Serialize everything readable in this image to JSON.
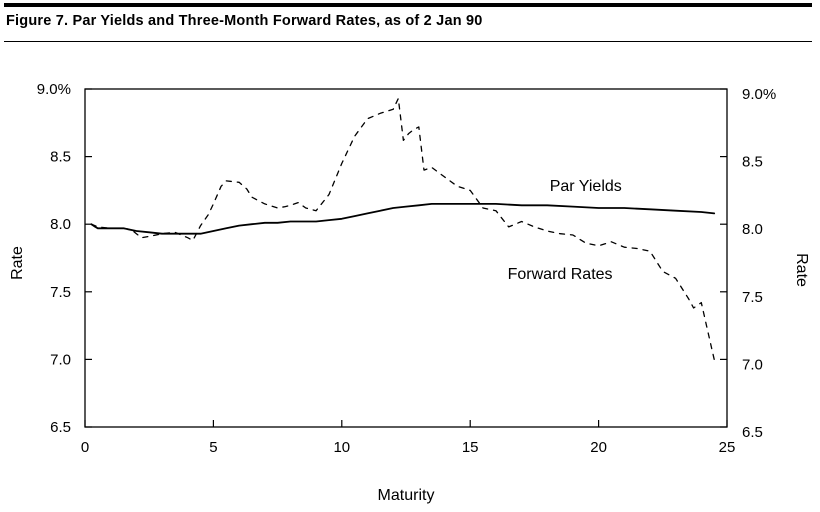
{
  "figure": {
    "title": "Figure 7. Par Yields and Three-Month Forward Rates, as of 2 Jan 90"
  },
  "chart_data": {
    "type": "line",
    "title": "Figure 7. Par Yields and Three-Month Forward Rates, as of 2 Jan 90",
    "xlabel": "Maturity",
    "ylabel_left": "Rate",
    "ylabel_right": "Rate",
    "xlim": [
      0,
      25
    ],
    "ylim": [
      6.5,
      9.0
    ],
    "x_ticks": [
      0,
      5,
      10,
      15,
      20,
      25
    ],
    "x_tick_labels": [
      "0",
      "5",
      "10",
      "15",
      "20",
      "25"
    ],
    "y_ticks": [
      6.5,
      7.0,
      7.5,
      8.0,
      8.5,
      9.0
    ],
    "y_tick_labels": [
      "6.5",
      "7.0",
      "7.5",
      "8.0",
      "8.5",
      "9.0%"
    ],
    "grid": false,
    "series": [
      {
        "name": "Par Yields",
        "style": "solid",
        "color": "#000000",
        "x": [
          0.25,
          0.4,
          0.5,
          1.0,
          1.5,
          2.0,
          2.5,
          3.0,
          3.5,
          4.0,
          4.5,
          5.0,
          5.5,
          6.0,
          6.5,
          7.0,
          7.5,
          8.0,
          8.5,
          9.0,
          9.5,
          10.0,
          10.5,
          11.0,
          11.5,
          12.0,
          12.5,
          13.0,
          13.5,
          14.0,
          14.5,
          15.0,
          15.5,
          16.0,
          17.0,
          18.0,
          19.0,
          20.0,
          21.0,
          22.0,
          23.0,
          24.0,
          24.5
        ],
        "y": [
          8.0,
          7.98,
          7.97,
          7.97,
          7.97,
          7.95,
          7.94,
          7.93,
          7.93,
          7.93,
          7.93,
          7.95,
          7.97,
          7.99,
          8.0,
          8.01,
          8.01,
          8.02,
          8.02,
          8.02,
          8.03,
          8.04,
          8.06,
          8.08,
          8.1,
          8.12,
          8.13,
          8.14,
          8.15,
          8.15,
          8.15,
          8.15,
          8.15,
          8.15,
          8.14,
          8.14,
          8.13,
          8.12,
          8.12,
          8.11,
          8.1,
          8.09,
          8.08
        ]
      },
      {
        "name": "Forward Rates",
        "style": "dashed",
        "color": "#000000",
        "x": [
          0.25,
          0.5,
          1.0,
          1.5,
          1.8,
          2.0,
          2.2,
          2.5,
          3.0,
          3.5,
          4.0,
          4.2,
          4.5,
          4.8,
          5.0,
          5.3,
          5.5,
          6.0,
          6.3,
          6.5,
          7.0,
          7.5,
          7.8,
          8.0,
          8.3,
          8.6,
          9.0,
          9.5,
          10.0,
          10.5,
          11.0,
          11.5,
          12.0,
          12.2,
          12.4,
          12.6,
          12.8,
          13.0,
          13.2,
          13.5,
          14.0,
          14.5,
          15.0,
          15.5,
          16.0,
          16.5,
          17.0,
          17.5,
          18.0,
          18.5,
          19.0,
          19.5,
          20.0,
          20.5,
          21.0,
          21.5,
          22.0,
          22.5,
          23.0,
          23.5,
          23.7,
          24.0,
          24.2,
          24.5
        ],
        "y": [
          8.0,
          7.98,
          7.97,
          7.97,
          7.96,
          7.93,
          7.9,
          7.91,
          7.93,
          7.94,
          7.9,
          7.88,
          7.99,
          8.07,
          8.15,
          8.28,
          8.32,
          8.31,
          8.26,
          8.2,
          8.15,
          8.12,
          8.13,
          8.14,
          8.16,
          8.12,
          8.1,
          8.22,
          8.45,
          8.65,
          8.78,
          8.82,
          8.85,
          8.93,
          8.62,
          8.67,
          8.7,
          8.72,
          8.4,
          8.42,
          8.35,
          8.28,
          8.25,
          8.12,
          8.1,
          7.98,
          8.02,
          7.98,
          7.95,
          7.93,
          7.92,
          7.86,
          7.84,
          7.87,
          7.83,
          7.82,
          7.8,
          7.65,
          7.6,
          7.45,
          7.38,
          7.42,
          7.25,
          7.0
        ]
      }
    ],
    "annotations": [
      {
        "text": "Par Yields",
        "x": 19.5,
        "y": 8.29
      },
      {
        "text": "Forward Rates",
        "x": 18.5,
        "y": 7.64
      }
    ]
  }
}
